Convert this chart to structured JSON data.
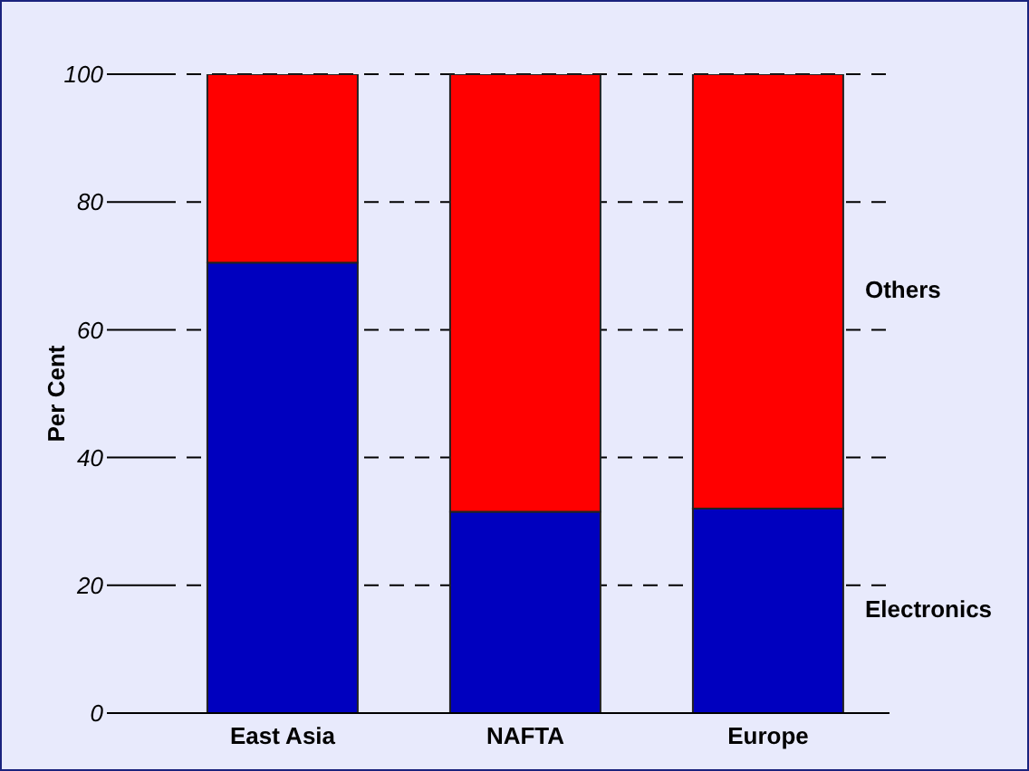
{
  "chart_data": {
    "type": "bar",
    "stacked": true,
    "ylabel": "Per Cent",
    "categories": [
      "East Asia",
      "NAFTA",
      "Europe"
    ],
    "series": [
      {
        "name": "Electronics",
        "color": "#0000bf",
        "values": [
          70.5,
          31.5,
          32
        ]
      },
      {
        "name": "Others",
        "color": "#ff0000",
        "values": [
          29.5,
          68.5,
          68
        ]
      }
    ],
    "ylim": [
      0,
      100
    ],
    "yticks": [
      0,
      20,
      40,
      60,
      80,
      100
    ],
    "grid": "y"
  }
}
